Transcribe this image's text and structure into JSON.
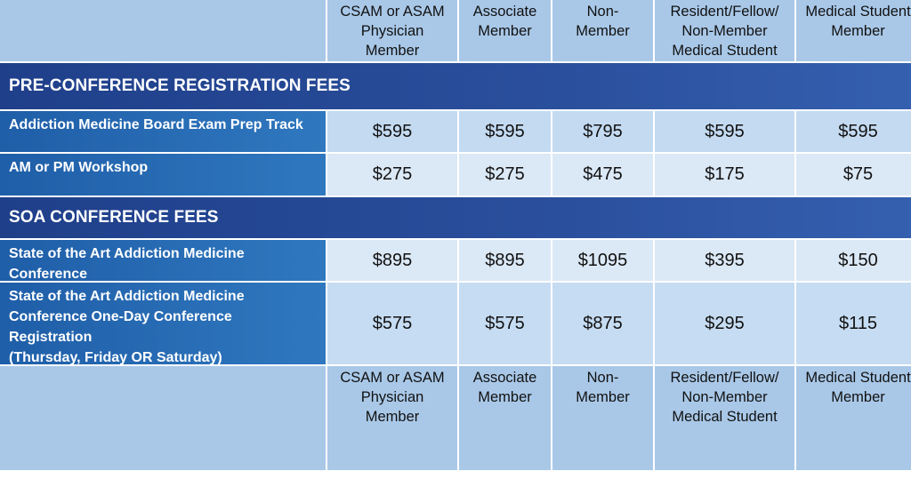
{
  "columns": [
    "CSAM or ASAM\nPhysician\nMember",
    "Associate\nMember",
    "Non-\nMember",
    "Resident/Fellow/\nNon-Member\nMedical Student",
    "Medical Student\nMember"
  ],
  "sections": [
    {
      "title": "PRE-CONFERENCE REGISTRATION FEES",
      "rows": [
        {
          "label": "Addiction Medicine Board Exam Prep Track",
          "values": [
            "$595",
            "$595",
            "$795",
            "$595",
            "$595"
          ]
        },
        {
          "label": "AM or PM Workshop",
          "values": [
            "$275",
            "$275",
            "$475",
            "$175",
            "$75"
          ]
        }
      ]
    },
    {
      "title": "SOA CONFERENCE FEES",
      "rows": [
        {
          "label": "State of the Art Addiction Medicine\nConference\n(Thursday – Saturday)",
          "values": [
            "$895",
            "$895",
            "$1095",
            "$395",
            "$150"
          ]
        },
        {
          "label": "State of the Art Addiction Medicine\nConference One-Day Conference\nRegistration\n(Thursday, Friday OR Saturday)",
          "values": [
            "$575",
            "$575",
            "$875",
            "$295",
            "$115"
          ]
        }
      ]
    }
  ]
}
